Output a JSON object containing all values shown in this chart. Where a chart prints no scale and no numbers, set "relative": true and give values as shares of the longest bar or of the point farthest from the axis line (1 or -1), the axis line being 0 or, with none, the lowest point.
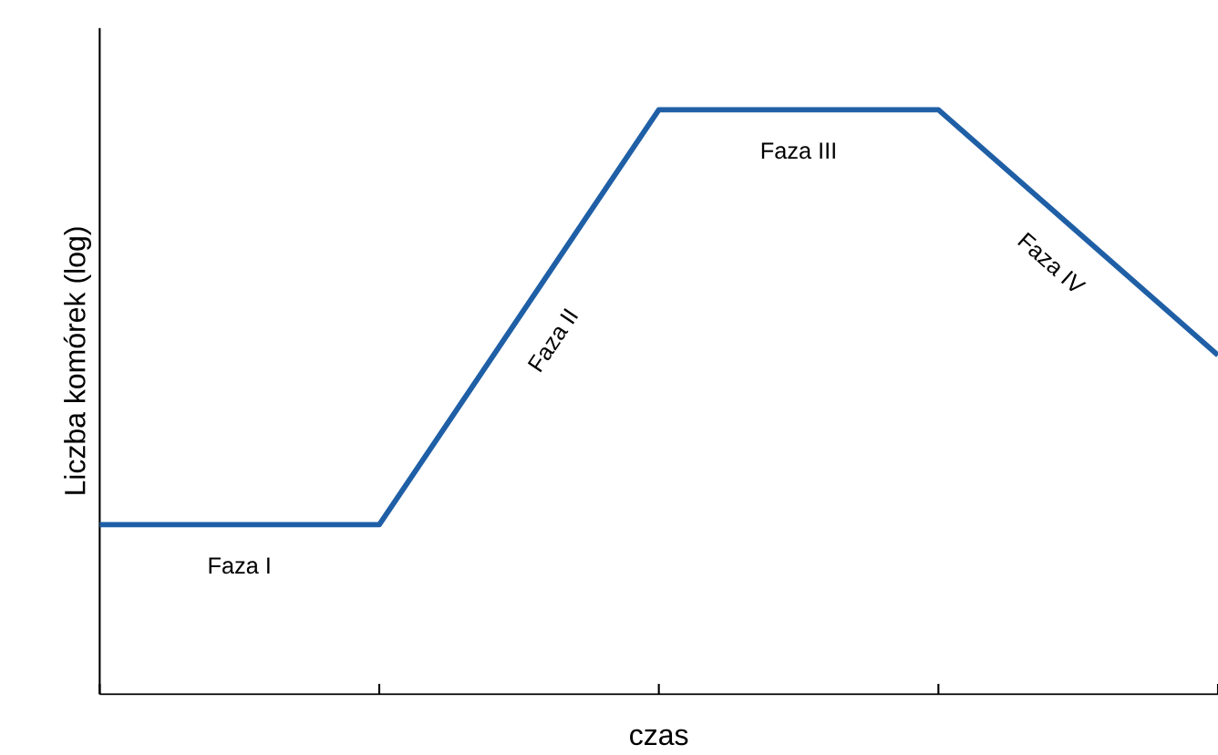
{
  "chart_data": {
    "type": "line",
    "relative": true,
    "xlabel": "czas",
    "ylabel": "Liczba komórek (log)",
    "categories": [
      null,
      null,
      null,
      null,
      null
    ],
    "series": [
      {
        "color": "#1f5fa6",
        "values": [
          0.29,
          0.29,
          1,
          1,
          0.58
        ]
      }
    ],
    "annotations": [
      "Faza I",
      "Faza II",
      "Faza III",
      "Faza IV"
    ]
  }
}
